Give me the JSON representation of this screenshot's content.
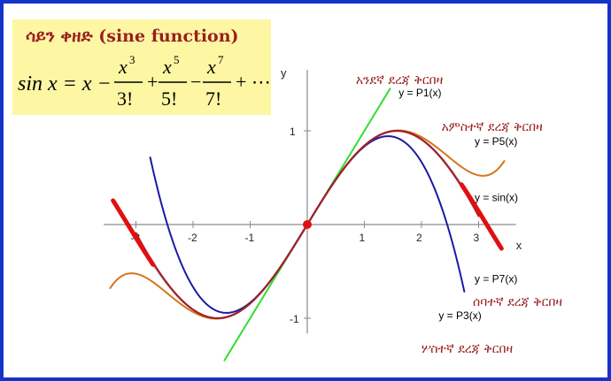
{
  "title": "ሳይን ቀዘድ (sine function)",
  "formula": {
    "lhs": "sin x = x −",
    "terms": [
      {
        "num": "x",
        "exp": "3",
        "den": "3!",
        "op": "+"
      },
      {
        "num": "x",
        "exp": "5",
        "den": "5!",
        "op": "−"
      },
      {
        "num": "x",
        "exp": "7",
        "den": "7!",
        "op": "+ ⋯"
      }
    ]
  },
  "colors": {
    "frame": "#1533c9",
    "formula_bg": "#fdf6a3",
    "amharic_text": "#9a1f1f",
    "sin": "#c0c0c0",
    "p1": "#33dd33",
    "p3": "#1a1aa6",
    "p5": "#d4761e",
    "p7": "#a0202a",
    "sin_edges": "#e01010",
    "origin": "#e01010"
  },
  "chart_data": {
    "type": "line",
    "xlabel": "x",
    "ylabel": "y",
    "xlim": [
      -3.5,
      3.5
    ],
    "ylim": [
      -1.2,
      1.65
    ],
    "x_ticks": [
      -3,
      -2,
      -1,
      1,
      2,
      3
    ],
    "x_tick_labels": [
      "-3",
      "-2",
      "-1",
      "1",
      "2",
      "3"
    ],
    "y_ticks": [
      -1,
      1
    ],
    "y_tick_labels": [
      "-1",
      "1"
    ],
    "origin_point": [
      0,
      0
    ],
    "series": [
      {
        "key": "sin",
        "name": "y = sin(x)",
        "function": "sin(x)",
        "x_range": [
          -3.4,
          3.4
        ],
        "color": "#c0c0c0"
      },
      {
        "key": "p1",
        "name": "y = P1(x)",
        "function": "x",
        "x_range": [
          -1.45,
          1.45
        ],
        "color": "#33dd33"
      },
      {
        "key": "p3",
        "name": "y = P3(x)",
        "function": "x - x^3/3!",
        "x_range": [
          -2.75,
          2.75
        ],
        "color": "#1a1aa6"
      },
      {
        "key": "p5",
        "name": "y = P5(x)",
        "function": "x - x^3/3! + x^5/5!",
        "x_range": [
          -3.45,
          3.45
        ],
        "color": "#d4761e"
      },
      {
        "key": "p7",
        "name": "y = P7(x)",
        "function": "x - x^3/3! + x^5/5! - x^7/7!",
        "x_range": [
          -3.0,
          3.0
        ],
        "color": "#a0202a"
      }
    ],
    "highlight_segments": [
      {
        "series": "sin",
        "x_range": [
          -3.4,
          -2.7
        ],
        "color": "#e01010"
      },
      {
        "series": "sin",
        "x_range": [
          2.7,
          3.4
        ],
        "color": "#e01010"
      }
    ],
    "annotations": [
      {
        "key": "p1_amharic",
        "text": "አንደኛ ደረጃ ቅርበዛ",
        "x": 0.85,
        "y": 1.5,
        "color": "#9a1f1f"
      },
      {
        "key": "p1_name",
        "text": "y = P1(x)",
        "x": 1.6,
        "y": 1.37,
        "color": "#000000"
      },
      {
        "key": "p5_amharic",
        "text": "አምስተኛ ደረጃ ቅርበዛ",
        "x": 2.35,
        "y": 1.0,
        "color": "#9a1f1f"
      },
      {
        "key": "p5_name",
        "text": "y = P5(x)",
        "x": 2.93,
        "y": 0.85,
        "color": "#000000"
      },
      {
        "key": "sin_name",
        "text": "y = sin(x)",
        "x": 2.93,
        "y": 0.25,
        "color": "#000000"
      },
      {
        "key": "p7_name",
        "text": "y = P7(x)",
        "x": 2.93,
        "y": -0.62,
        "color": "#000000"
      },
      {
        "key": "p7_amharic",
        "text": "ሰባተኛ ደረጃ ቅርበዛ",
        "x": 2.9,
        "y": -0.87,
        "color": "#9a1f1f"
      },
      {
        "key": "p3_name",
        "text": "y = P3(x)",
        "x": 2.3,
        "y": -1.01,
        "color": "#000000"
      },
      {
        "key": "p3_amharic",
        "text": "ሦስተኛ ደረጃ ቅርበዛ",
        "x": 2.0,
        "y": -1.37,
        "color": "#9a1f1f"
      }
    ]
  }
}
